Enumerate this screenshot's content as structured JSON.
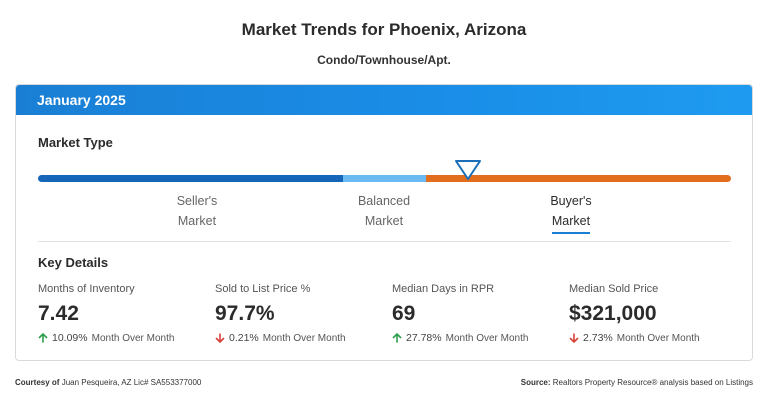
{
  "header": {
    "title": "Market Trends for Phoenix, Arizona",
    "subtitle": "Condo/Townhouse/Apt."
  },
  "card": {
    "period": "January 2025",
    "market_type": {
      "label": "Market Type",
      "segments": [
        {
          "name": "seller",
          "share": 0.44,
          "color": "#1565b8"
        },
        {
          "name": "balanced",
          "share": 0.12,
          "color": "#6bbaf2"
        },
        {
          "name": "buyer",
          "share": 0.44,
          "color": "#e26d1c"
        }
      ],
      "indicator_position": 0.62,
      "labels": [
        {
          "line1": "Seller's",
          "line2": "Market"
        },
        {
          "line1": "Balanced",
          "line2": "Market"
        },
        {
          "line1": "Buyer's",
          "line2": "Market"
        }
      ],
      "selected": "Buyer's Market"
    },
    "key_details": {
      "label": "Key Details",
      "metrics": [
        {
          "label": "Months of Inventory",
          "value": "7.42",
          "change": "10.09%",
          "change_label": "Month Over Month",
          "direction": "up"
        },
        {
          "label": "Sold to List Price %",
          "value": "97.7%",
          "change": "0.21%",
          "change_label": "Month Over Month",
          "direction": "down"
        },
        {
          "label": "Median Days in RPR",
          "value": "69",
          "change": "27.78%",
          "change_label": "Month Over Month",
          "direction": "up"
        },
        {
          "label": "Median Sold Price",
          "value": "$321,000",
          "change": "2.73%",
          "change_label": "Month Over Month",
          "direction": "down"
        }
      ]
    }
  },
  "footer": {
    "courtesy_label": "Courtesy of",
    "courtesy_text": "Juan Pesqueira, AZ Lic# SA553377000",
    "source_label": "Source:",
    "source_text": "Realtors Property Resource® analysis based on Listings"
  },
  "colors": {
    "up": "#2e9e4f",
    "down": "#d9423a",
    "accent": "#1a7fd4"
  }
}
